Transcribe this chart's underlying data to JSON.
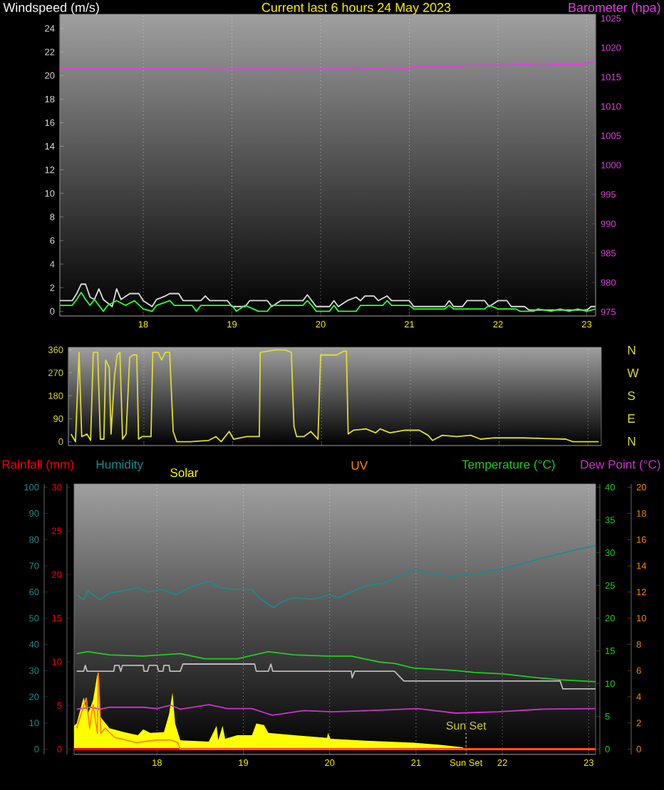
{
  "chart_data": [
    {
      "type": "line",
      "title": "Current last 6 hours 24 May 2023",
      "ylabel": "Windspeed (m/s)",
      "y2label": "Barometer (hpa)",
      "xlim": [
        17.06,
        23.1
      ],
      "xticks": [
        18,
        19,
        20,
        21,
        22,
        23
      ],
      "ylim": [
        -0.4,
        25.2
      ],
      "yticks": [
        0,
        2,
        4,
        6,
        8,
        10,
        12,
        14,
        16,
        18,
        20,
        22,
        24
      ],
      "y2lim": [
        974.3,
        1025.7
      ],
      "y2ticks": [
        975,
        980,
        985,
        990,
        995,
        1000,
        1005,
        1010,
        1015,
        1020,
        1025
      ],
      "grid": "x",
      "series": [
        {
          "color": "#dddddd",
          "x": [
            17.06,
            17.2,
            17.25,
            17.3,
            17.35,
            17.4,
            17.45,
            17.5,
            17.55,
            17.65,
            17.7,
            17.75,
            17.85,
            17.95,
            18.0,
            18.1,
            18.15,
            18.25,
            18.3,
            18.4,
            18.45,
            18.65,
            18.7,
            18.75,
            18.95,
            19.0,
            19.15,
            19.2,
            19.4,
            19.45,
            19.55,
            19.8,
            19.85,
            19.9,
            19.95,
            20.1,
            20.15,
            20.2,
            20.3,
            20.4,
            20.45,
            20.5,
            20.6,
            20.65,
            20.75,
            20.8,
            21.0,
            21.05,
            21.4,
            21.45,
            21.5,
            21.6,
            21.65,
            21.85,
            21.9,
            22.0,
            22.1,
            22.15,
            22.3,
            22.35,
            23.0,
            23.05,
            23.1
          ],
          "values": [
            0.9,
            0.9,
            1.5,
            2.3,
            2.3,
            1.2,
            1.0,
            1.9,
            1.0,
            0.4,
            1.9,
            1.0,
            1.5,
            1.5,
            0.9,
            0.4,
            1.0,
            1.3,
            1.5,
            1.5,
            0.9,
            0.9,
            1.3,
            0.9,
            0.9,
            0.4,
            0.4,
            0.9,
            0.9,
            0.4,
            0.9,
            0.9,
            1.4,
            0.9,
            0.4,
            0.4,
            0.9,
            0.4,
            0.9,
            1.2,
            0.9,
            1.3,
            1.3,
            0.9,
            1.3,
            0.9,
            0.9,
            0.4,
            0.4,
            0.9,
            0.4,
            0.4,
            0.9,
            0.9,
            0.4,
            0.9,
            0.9,
            0.4,
            0.4,
            0.1,
            0.1,
            0.4,
            0.4
          ]
        },
        {
          "color": "#33ff33",
          "x": [
            17.06,
            17.2,
            17.25,
            17.3,
            17.35,
            17.4,
            17.45,
            17.5,
            17.55,
            17.6,
            17.7,
            17.8,
            17.9,
            18.0,
            18.1,
            18.15,
            18.3,
            18.35,
            18.55,
            18.6,
            18.65,
            19.0,
            19.05,
            19.15,
            19.3,
            19.4,
            19.45,
            19.8,
            19.85,
            19.9,
            19.95,
            20.1,
            20.15,
            20.2,
            20.4,
            20.45,
            20.7,
            20.75,
            20.8,
            21.0,
            21.05,
            21.4,
            21.45,
            21.5,
            21.85,
            21.9,
            22.0,
            22.2,
            22.25,
            22.4,
            22.45,
            22.6,
            22.7,
            22.8,
            22.9,
            23.0,
            23.1
          ],
          "values": [
            0.5,
            0.5,
            1.0,
            1.6,
            1.0,
            0.5,
            1.0,
            0.5,
            0.0,
            0.5,
            0.9,
            0.5,
            0.9,
            0.2,
            0.0,
            0.5,
            0.9,
            0.5,
            0.5,
            0.0,
            0.5,
            0.5,
            0.0,
            0.5,
            0.0,
            0.0,
            0.5,
            0.5,
            0.9,
            0.5,
            0.0,
            0.0,
            0.5,
            0.0,
            0.0,
            0.5,
            0.5,
            0.9,
            0.5,
            0.5,
            0.2,
            0.2,
            0.5,
            0.2,
            0.2,
            0.5,
            0.2,
            0.2,
            0.0,
            0.0,
            0.2,
            0.0,
            0.2,
            0.0,
            0.2,
            0.0,
            0.2
          ]
        },
        {
          "color": "#e040e0",
          "axis": "y2",
          "x": [
            17.06,
            17.95,
            18.0,
            18.05,
            18.7,
            18.75,
            19.0,
            19.05,
            19.5,
            19.95,
            20.0,
            20.35,
            20.4,
            20.45,
            20.7,
            20.75,
            20.8,
            21.0,
            21.05,
            21.6,
            21.65,
            22.15,
            22.2,
            22.35,
            22.4,
            22.55,
            22.6,
            22.95,
            23.0,
            23.1
          ],
          "values": [
            1016.5,
            1016.5,
            1016.4,
            1016.5,
            1016.5,
            1016.3,
            1016.3,
            1016.4,
            1016.4,
            1016.3,
            1016.4,
            1016.4,
            1016.7,
            1016.5,
            1016.5,
            1016.7,
            1016.5,
            1016.5,
            1016.8,
            1016.8,
            1017.0,
            1017.0,
            1017.1,
            1017.1,
            1017.0,
            1017.0,
            1017.1,
            1017.1,
            1017.4,
            1017.4
          ]
        }
      ]
    },
    {
      "type": "line",
      "xlim": [
        17.15,
        23.15
      ],
      "xticks": [
        18,
        19,
        20,
        21,
        22,
        23
      ],
      "tick_labels": "y",
      "ylim": [
        -15,
        370
      ],
      "yticks": [
        0,
        90,
        180,
        270,
        360
      ],
      "annotations": [
        "N",
        "W",
        "S",
        "E",
        "N"
      ],
      "grid": "x",
      "series": [
        {
          "color": "#dddd33",
          "x": [
            17.18,
            17.23,
            17.27,
            17.3,
            17.36,
            17.4,
            17.43,
            17.48,
            17.51,
            17.55,
            17.57,
            17.61,
            17.63,
            17.67,
            17.7,
            17.73,
            17.76,
            17.8,
            17.84,
            17.88,
            17.92,
            17.94,
            17.98,
            18.08,
            18.1,
            18.16,
            18.2,
            18.24,
            18.29,
            18.33,
            18.37,
            18.52,
            18.73,
            18.81,
            18.87,
            18.96,
            19.01,
            19.16,
            19.3,
            19.31,
            19.48,
            19.59,
            19.66,
            19.69,
            19.72,
            19.8,
            19.88,
            19.96,
            19.99,
            20.17,
            20.25,
            20.28,
            20.3,
            20.36,
            20.5,
            20.61,
            20.66,
            20.77,
            20.94,
            21.1,
            21.2,
            21.25,
            21.36,
            21.52,
            21.68,
            21.79,
            21.95,
            22.27,
            22.75,
            22.83,
            23.12
          ],
          "values": [
            30,
            0,
            350,
            20,
            30,
            5,
            350,
            350,
            10,
            10,
            320,
            290,
            30,
            260,
            340,
            350,
            10,
            30,
            330,
            340,
            340,
            10,
            20,
            20,
            350,
            350,
            320,
            350,
            350,
            40,
            0,
            0,
            5,
            20,
            0,
            40,
            10,
            20,
            20,
            350,
            360,
            360,
            350,
            60,
            20,
            20,
            40,
            10,
            340,
            340,
            355,
            355,
            30,
            45,
            50,
            35,
            50,
            35,
            45,
            45,
            25,
            5,
            25,
            20,
            25,
            10,
            15,
            15,
            10,
            0,
            0
          ]
        }
      ]
    },
    {
      "type": "line",
      "xlim": [
        17.04,
        23.08
      ],
      "xticks": [
        18,
        19,
        20,
        21,
        {
          "value": 21.58,
          "label": "Sun Set"
        },
        22,
        23
      ],
      "ylim": [
        -2,
        101.25
      ],
      "yticks": [
        0,
        10,
        20,
        30,
        40,
        50,
        60,
        70,
        80,
        90,
        100
      ],
      "y2lim": [
        -0.6,
        30.375
      ],
      "y2ticks": [
        0,
        5,
        10,
        15,
        20,
        25,
        30
      ],
      "grid": "x",
      "ref_lines": [
        {
          "axis": "x",
          "value": 21.58,
          "label": "Sun Set",
          "color": "#cccc33",
          "line_style": "dotted"
        }
      ],
      "series": [
        {
          "name": "Rainfall (mm)",
          "color": "#ff0000",
          "axis": "y2",
          "x": [
            17.04,
            23.08
          ],
          "values": [
            0,
            0
          ]
        },
        {
          "name": "Humidity",
          "color": "#1a8c8c",
          "x": [
            17.07,
            17.15,
            17.2,
            17.34,
            17.45,
            17.62,
            17.78,
            17.89,
            18.05,
            18.22,
            18.38,
            18.55,
            18.63,
            18.71,
            18.88,
            19.1,
            19.18,
            19.35,
            19.43,
            19.59,
            19.81,
            20.0,
            20.1,
            20.25,
            20.42,
            20.64,
            20.82,
            21.0,
            21.17,
            21.43,
            21.57,
            21.79,
            22.01,
            22.23,
            22.45,
            22.67,
            22.89,
            23.08
          ],
          "values": [
            59,
            57,
            60.5,
            57,
            59.6,
            60.5,
            61.8,
            60,
            61,
            59,
            61.8,
            63.8,
            63.8,
            61.8,
            61,
            61,
            57.8,
            54,
            56,
            57.8,
            57.2,
            59,
            57.8,
            60,
            62.3,
            63.6,
            66.3,
            68.7,
            66.8,
            66,
            66.8,
            67.4,
            69,
            70.8,
            72.8,
            74.6,
            76.4,
            77.7
          ]
        },
        {
          "name": "Solar",
          "type": "area",
          "color": "#ffff00",
          "x": [
            17.04,
            17.07,
            17.15,
            17.2,
            17.26,
            17.31,
            17.34,
            17.45,
            17.62,
            17.78,
            17.84,
            17.92,
            18.08,
            18.14,
            18.18,
            18.21,
            18.27,
            18.6,
            18.69,
            18.71,
            18.76,
            18.79,
            18.93,
            19.1,
            19.15,
            19.24,
            19.29,
            19.59,
            19.97,
            19.98,
            20.01,
            20.31,
            20.97,
            21.3,
            21.54,
            21.57,
            23.08
          ],
          "values": [
            8.9,
            9.8,
            19.7,
            13.4,
            18.8,
            28.8,
            12.5,
            8,
            6.5,
            5.3,
            7.6,
            6.2,
            6.5,
            13.4,
            21.6,
            9.8,
            3.4,
            2.9,
            8.9,
            3.4,
            8.9,
            4,
            5.3,
            5.3,
            9.8,
            9.2,
            6.2,
            5.3,
            4.3,
            6.2,
            4,
            3.4,
            2.5,
            1.6,
            0.7,
            0,
            0
          ]
        }
      ]
    },
    {
      "type": "line",
      "xlim": [
        17.04,
        23.08
      ],
      "tick_labels": "y",
      "ylim": [
        -0.8,
        40.5
      ],
      "yticks": [
        0,
        5,
        10,
        15,
        20,
        25,
        30,
        35,
        40
      ],
      "y2lim": [
        -0.4,
        20.25
      ],
      "y2ticks": [
        0,
        2,
        4,
        6,
        8,
        10,
        12,
        14,
        16,
        18,
        20
      ],
      "series": [
        {
          "name": "UV",
          "color": "#ff8800",
          "axis": "y2",
          "x": [
            17.07,
            17.18,
            17.22,
            17.26,
            17.31,
            17.32,
            17.35,
            17.4,
            17.51,
            17.76,
            18.0,
            18.16,
            18.24,
            18.27,
            23.08
          ],
          "values": [
            1.6,
            3.9,
            1.6,
            3.4,
            1.2,
            5.8,
            1.2,
            1.6,
            0.9,
            0.5,
            0.7,
            0.7,
            0.5,
            0,
            0
          ]
        },
        {
          "name": "Temperature (°C)",
          "color": "#22cc22",
          "x": [
            17.07,
            17.2,
            17.45,
            17.84,
            18.27,
            18.55,
            18.93,
            19.29,
            19.59,
            19.98,
            20.25,
            20.58,
            20.75,
            20.97,
            21.46,
            21.68,
            22.01,
            22.34,
            22.67,
            23.08
          ],
          "values": [
            14.6,
            14.9,
            14.4,
            14.2,
            14.6,
            13.8,
            13.8,
            14.9,
            14.4,
            14.2,
            14.2,
            13.3,
            13.1,
            12.4,
            12.0,
            11.7,
            11.5,
            11.0,
            10.6,
            10.3
          ]
        },
        {
          "name": "Dew Point (°C)",
          "color": "#cc33cc",
          "x": [
            17.07,
            17.23,
            17.34,
            17.45,
            17.84,
            18.0,
            18.16,
            18.27,
            18.6,
            18.82,
            19.1,
            19.26,
            19.34,
            19.7,
            20.03,
            20.47,
            21.02,
            21.46,
            21.95,
            22.45,
            23.08
          ],
          "values": [
            6.1,
            6.4,
            6.1,
            6.4,
            6.4,
            6.2,
            6.7,
            6.1,
            6.8,
            6.2,
            6.2,
            5.5,
            5.2,
            5.9,
            5.7,
            5.9,
            6.2,
            5.5,
            5.7,
            6.1,
            6.2
          ]
        },
        {
          "color": "#bbbbbb",
          "x": [
            17.07,
            17.15,
            17.17,
            17.19,
            17.5,
            17.51,
            17.56,
            17.58,
            17.6,
            17.84,
            17.85,
            17.89,
            17.91,
            18.0,
            18.02,
            18.07,
            18.08,
            18.14,
            18.15,
            18.27,
            18.3,
            19.13,
            19.15,
            19.29,
            19.32,
            19.34,
            20.25,
            20.26,
            20.29,
            20.75,
            20.86,
            22.67,
            22.7,
            23.08
          ],
          "values": [
            11.9,
            11.9,
            12.8,
            11.9,
            11.9,
            12.8,
            12.8,
            11.9,
            12.8,
            12.8,
            11.9,
            11.9,
            12.8,
            12.8,
            11.9,
            11.9,
            12.8,
            12.8,
            11.9,
            11.9,
            13.0,
            13.0,
            11.9,
            11.9,
            13.0,
            11.9,
            11.9,
            10.9,
            11.9,
            11.9,
            10.4,
            10.4,
            9.2,
            9.2
          ]
        }
      ]
    }
  ]
}
